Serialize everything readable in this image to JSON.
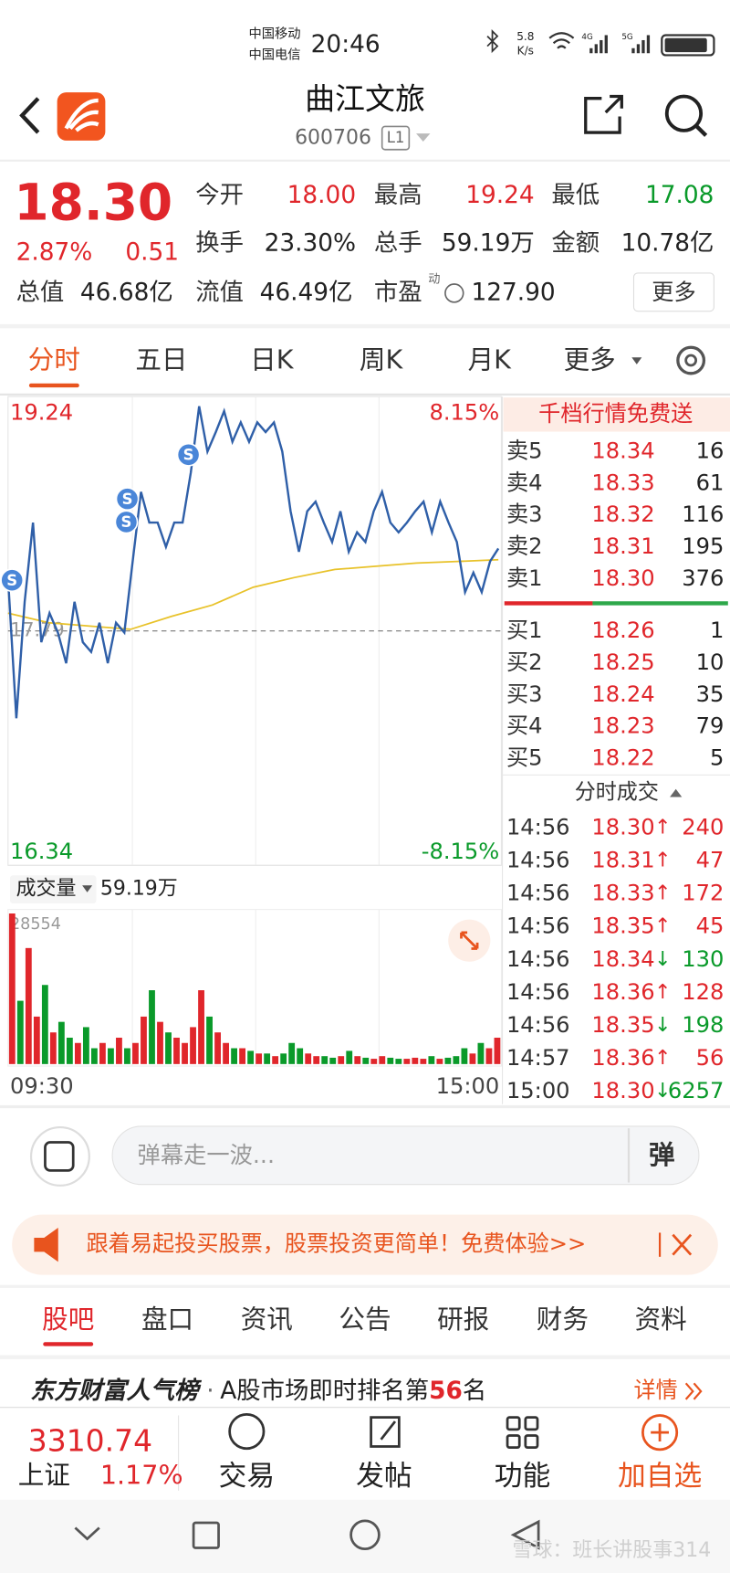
{
  "status": {
    "carrier_1": "中国移动",
    "carrier_2": "中国电信",
    "time": "20:46",
    "speed_value": "5.8",
    "speed_unit": "K/s",
    "network_1": "4G",
    "network_2": "5G"
  },
  "header": {
    "title": "曲江文旅",
    "code": "600706",
    "level": "L1"
  },
  "quote": {
    "price": "18.30",
    "change_pct": "2.87%",
    "change": "0.51",
    "stats": [
      [
        {
          "label": "今开",
          "value": "18.00"
        },
        {
          "label": "最高",
          "value": "19.24"
        },
        {
          "label": "最低",
          "value": "17.08"
        }
      ],
      [
        {
          "label": "换手",
          "value": "23.30%"
        },
        {
          "label": "总手",
          "value": "59.19万"
        },
        {
          "label": "金额",
          "value": "10.78亿"
        }
      ],
      [
        {
          "label": "总值",
          "value": "46.68亿"
        },
        {
          "label": "流值",
          "value": "46.49亿"
        },
        {
          "label": "市盈",
          "sup": "动",
          "value": "127.90"
        }
      ]
    ],
    "more": "更多"
  },
  "tabs": [
    "分时",
    "五日",
    "日K",
    "周K",
    "月K",
    "更多"
  ],
  "intraday": {
    "ylim": [
      16.34,
      19.24
    ],
    "yticks": [
      16.34,
      17.79,
      19.24
    ],
    "pct_labels": [
      "8.15%",
      "-8.15%"
    ],
    "signal_label": "S",
    "price": [
      18.12,
      17.25,
      17.97,
      18.46,
      17.72,
      17.9,
      17.78,
      17.59,
      17.97,
      17.72,
      17.66,
      17.84,
      17.59,
      17.84,
      17.78,
      18.22,
      18.65,
      18.46,
      18.46,
      18.31,
      18.46,
      18.46,
      18.77,
      19.18,
      18.9,
      19.02,
      19.15,
      18.96,
      19.08,
      18.96,
      19.08,
      19.02,
      19.08,
      18.9,
      18.53,
      18.28,
      18.53,
      18.59,
      18.46,
      18.34,
      18.53,
      18.28,
      18.4,
      18.34,
      18.53,
      18.65,
      18.46,
      18.4,
      18.46,
      18.53,
      18.59,
      18.4,
      18.59,
      18.46,
      18.34,
      18.03,
      18.15,
      18.03,
      18.22,
      18.3
    ],
    "average": [
      17.9,
      17.84,
      17.82,
      17.8,
      17.88,
      17.95,
      18.06,
      18.12,
      18.17,
      18.19,
      18.21,
      18.22,
      18.23
    ],
    "volume_label": "成交量",
    "volume_total": "59.19万",
    "volume_ylim": [
      0,
      28554
    ],
    "volume": [
      28554,
      12000,
      22000,
      9000,
      15000,
      6000,
      8000,
      5000,
      4000,
      7000,
      3000,
      4000,
      3000,
      5000,
      3000,
      4000,
      9000,
      14000,
      8000,
      6000,
      5000,
      4000,
      7000,
      14000,
      9000,
      6000,
      4000,
      3000,
      3000,
      2500,
      2000,
      2000,
      1500,
      2000,
      4000,
      3000,
      2000,
      1500,
      1500,
      1200,
      1500,
      2500,
      1500,
      1200,
      1000,
      1500,
      1200,
      1000,
      1000,
      1200,
      1000,
      1500,
      1000,
      1200,
      1500,
      3000,
      2000,
      4000,
      3000,
      5000
    ],
    "xlabels": [
      "09:30",
      "15:00"
    ]
  },
  "orderbook": {
    "title": "千档行情免费送",
    "sell": [
      [
        "卖5",
        "18.34",
        "16"
      ],
      [
        "卖4",
        "18.33",
        "61"
      ],
      [
        "卖3",
        "18.32",
        "116"
      ],
      [
        "卖2",
        "18.31",
        "195"
      ],
      [
        "卖1",
        "18.30",
        "376"
      ]
    ],
    "buy": [
      [
        "买1",
        "18.26",
        "1"
      ],
      [
        "买2",
        "18.25",
        "10"
      ],
      [
        "买3",
        "18.24",
        "35"
      ],
      [
        "买4",
        "18.23",
        "79"
      ],
      [
        "买5",
        "18.22",
        "5"
      ]
    ],
    "trades_title": "分时成交",
    "trades": [
      [
        "14:56",
        "18.30",
        "↑",
        "240"
      ],
      [
        "14:56",
        "18.31",
        "↑",
        "47"
      ],
      [
        "14:56",
        "18.33",
        "↑",
        "172"
      ],
      [
        "14:56",
        "18.35",
        "↑",
        "45"
      ],
      [
        "14:56",
        "18.34",
        "↓",
        "130"
      ],
      [
        "14:56",
        "18.36",
        "↑",
        "128"
      ],
      [
        "14:56",
        "18.35",
        "↓",
        "198"
      ],
      [
        "14:57",
        "18.36",
        "↑",
        "56"
      ],
      [
        "15:00",
        "18.30",
        "↓",
        "6257"
      ]
    ]
  },
  "comment": {
    "placeholder": "弹幕走一波...",
    "button": "弹"
  },
  "ad": {
    "text": "跟着易起投买股票，股票投资更简单！免费体验>>"
  },
  "sections": [
    "股吧",
    "盘口",
    "资讯",
    "公告",
    "研报",
    "财务",
    "资料"
  ],
  "ranking": {
    "brand": "东方财富人气榜",
    "dot": "·",
    "text": "A股市场即时排名第",
    "rank": "56",
    "suffix": "名",
    "detail": "详情"
  },
  "bottom_nav": {
    "index_value": "3310.74",
    "index_name": "上证",
    "index_pct": "1.17%",
    "items": [
      "交易",
      "发帖",
      "功能",
      "加自选"
    ]
  },
  "watermark": "雪球：班长讲股事314"
}
